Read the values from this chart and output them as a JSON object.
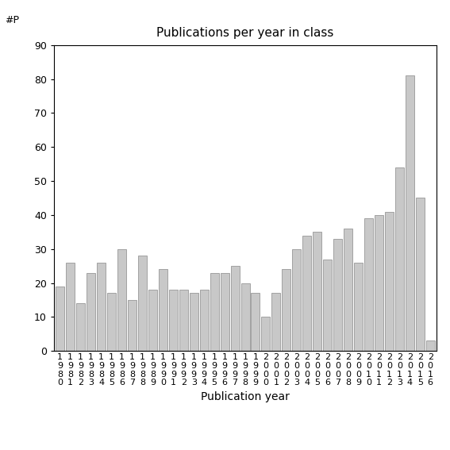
{
  "years": [
    1980,
    1981,
    1982,
    1983,
    1984,
    1985,
    1986,
    1987,
    1988,
    1989,
    1990,
    1991,
    1992,
    1993,
    1994,
    1995,
    1996,
    1997,
    1998,
    1999,
    2000,
    2001,
    2002,
    2003,
    2004,
    2005,
    2006,
    2007,
    2008,
    2009,
    2010,
    2011,
    2012,
    2013,
    2014,
    2015,
    2016
  ],
  "values": [
    19,
    26,
    14,
    23,
    26,
    17,
    30,
    15,
    28,
    18,
    24,
    18,
    18,
    17,
    18,
    23,
    23,
    25,
    20,
    17,
    10,
    17,
    24,
    30,
    34,
    35,
    27,
    33,
    36,
    26,
    39,
    40,
    41,
    54,
    81,
    45,
    3
  ],
  "title": "Publications per year in class",
  "xlabel": "Publication year",
  "ylabel_annotation": "#P",
  "ylim": [
    0,
    90
  ],
  "yticks": [
    0,
    10,
    20,
    30,
    40,
    50,
    60,
    70,
    80,
    90
  ],
  "bar_color": "#c8c8c8",
  "bar_edgecolor": "#888888",
  "background_color": "#ffffff",
  "title_fontsize": 11,
  "xlabel_fontsize": 10,
  "tick_fontsize": 9
}
